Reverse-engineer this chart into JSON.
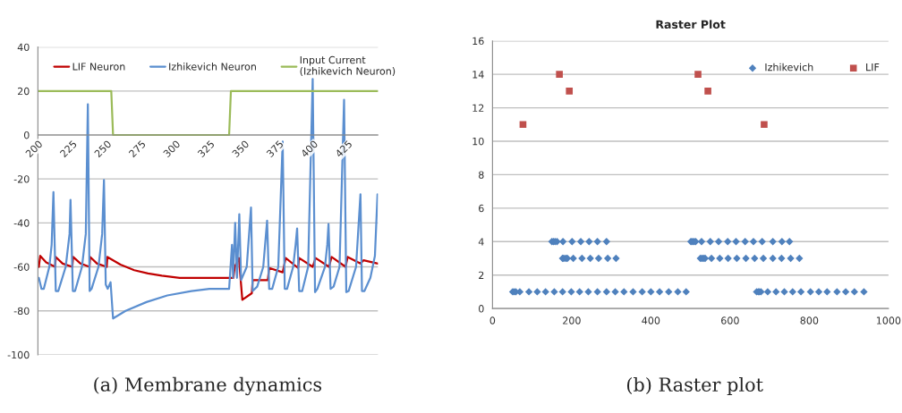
{
  "chart_data": [
    {
      "type": "line",
      "xlim": [
        200,
        447
      ],
      "xticks": [
        200,
        225,
        250,
        275,
        300,
        325,
        350,
        375,
        400,
        425
      ],
      "ylim": [
        -100,
        40
      ],
      "yticks": [
        -100,
        -80,
        -60,
        -40,
        -20,
        0,
        20,
        40
      ],
      "grid": "y",
      "legend": "top",
      "annotations": [
        "(a) Membrane dynamics"
      ],
      "series": [
        {
          "name": "LIF Neuron",
          "color": "#c00000",
          "x": [
            200.7,
            201.7,
            206,
            212.5,
            213,
            218,
            225,
            225.6,
            231,
            237.5,
            238,
            243,
            250,
            250.5,
            260,
            270,
            280,
            290,
            303,
            342,
            343,
            346,
            348.5,
            355.4,
            356,
            367,
            368,
            377.8,
            380,
            389,
            389.8,
            399.6,
            401.7,
            411.5,
            413.3,
            423.5,
            425,
            434.3,
            436.5,
            447
          ],
          "values": [
            -60,
            -55,
            -58,
            -60,
            -55.5,
            -58.5,
            -60,
            -55.5,
            -58.5,
            -60,
            -55.5,
            -58.5,
            -60,
            -55.5,
            -59,
            -61.5,
            -63,
            -64,
            -65,
            -65,
            -60,
            -56,
            -75,
            -72,
            -66,
            -66,
            -60.5,
            -62.5,
            -56,
            -60.5,
            -56,
            -60,
            -56,
            -60,
            -55.5,
            -60,
            -55.5,
            -58.5,
            -57,
            -58.5
          ]
        },
        {
          "name": "Izhikevich Neuron",
          "color": "#5b8fd0",
          "x": [
            200.7,
            202.6,
            204.3,
            208.3,
            210,
            211.3,
            213,
            214.8,
            220.2,
            223,
            223.7,
            225.4,
            227,
            232,
            234.8,
            236.3,
            237.6,
            239,
            244,
            246.7,
            248,
            249.3,
            250.7,
            252.8,
            254.6,
            263.7,
            278.9,
            294,
            311.5,
            324.6,
            338.9,
            341,
            341.8,
            343.3,
            344.6,
            346.3,
            347.6,
            351.7,
            354.8,
            356,
            359.3,
            363.7,
            366.5,
            368,
            370.2,
            374.6,
            377.8,
            379.3,
            381,
            385.4,
            387.2,
            388.3,
            389.8,
            392,
            396.3,
            399.6,
            401.3,
            403,
            408.5,
            410.2,
            411.1,
            412.6,
            414.8,
            419.1,
            422.4,
            424,
            425.7,
            431.1,
            434.3,
            435.4,
            437.2,
            441.5,
            444.8,
            446.7
          ],
          "values": [
            -65,
            -70,
            -70,
            -60,
            -50,
            -26,
            -71,
            -71,
            -60,
            -45,
            -29.5,
            -71,
            -71,
            -60,
            -45,
            14,
            -71,
            -70,
            -60,
            -45,
            -20.5,
            -68,
            -70,
            -67,
            -83.5,
            -80,
            -76,
            -73,
            -71,
            -70,
            -70,
            -50,
            -65,
            -40,
            -65,
            -36,
            -66,
            -60,
            -33,
            -71,
            -69,
            -60,
            -39,
            -70,
            -70,
            -60,
            -3,
            -70,
            -70,
            -60,
            -50,
            -42.5,
            -71,
            -71,
            -60,
            25.5,
            -71.5,
            -70,
            -60,
            -50,
            -40.5,
            -70,
            -69,
            -60,
            16,
            -71.5,
            -71,
            -60,
            -27,
            -71,
            -71,
            -65,
            -55,
            -27
          ]
        },
        {
          "name": "Input Current\n(Izhikevich Neuron)",
          "color": "#9bbb59",
          "x": [
            200,
            253.3,
            254.6,
            338.9,
            340.2,
            447
          ],
          "values": [
            20,
            20,
            0,
            0,
            20,
            20
          ]
        }
      ]
    },
    {
      "type": "scatter",
      "title": "Raster Plot",
      "xlim": [
        0,
        1000
      ],
      "xticks": [
        0,
        200,
        400,
        600,
        800,
        1000
      ],
      "ylim": [
        0,
        16
      ],
      "yticks": [
        0,
        2,
        4,
        6,
        8,
        10,
        12,
        14,
        16
      ],
      "grid": "y",
      "legend": "top right",
      "annotations": [
        "(b) Raster plot"
      ],
      "series": [
        {
          "name": "Izhikevich",
          "color": "#4f81bd",
          "marker": "diamond",
          "x": [
            51,
            55,
            59,
            69,
            92,
            113,
            134,
            156,
            177,
            199,
            220,
            242,
            265,
            288,
            310,
            332,
            355,
            378,
            400,
            422,
            445,
            468,
            489,
            667,
            671,
            674,
            678,
            695,
            716,
            737,
            758,
            779,
            803,
            824,
            845,
            870,
            892,
            914,
            938,
            150,
            154,
            158,
            163,
            178,
            201,
            223,
            244,
            265,
            288,
            501,
            505,
            509,
            513,
            528,
            550,
            571,
            594,
            615,
            638,
            659,
            681,
            708,
            731,
            750,
            177,
            180,
            185,
            189,
            204,
            226,
            247,
            268,
            291,
            312,
            525,
            529,
            533,
            537,
            553,
            574,
            595,
            617,
            640,
            662,
            684,
            708,
            730,
            753,
            775
          ],
          "values": [
            1,
            1,
            1,
            1,
            1,
            1,
            1,
            1,
            1,
            1,
            1,
            1,
            1,
            1,
            1,
            1,
            1,
            1,
            1,
            1,
            1,
            1,
            1,
            1,
            1,
            1,
            1,
            1,
            1,
            1,
            1,
            1,
            1,
            1,
            1,
            1,
            1,
            1,
            1,
            4,
            4,
            4,
            4,
            4,
            4,
            4,
            4,
            4,
            4,
            4,
            4,
            4,
            4,
            4,
            4,
            4,
            4,
            4,
            4,
            4,
            4,
            4,
            4,
            4,
            3,
            3,
            3,
            3,
            3,
            3,
            3,
            3,
            3,
            3,
            3,
            3,
            3,
            3,
            3,
            3,
            3,
            3,
            3,
            3,
            3,
            3,
            3,
            3,
            3
          ]
        },
        {
          "name": "LIF",
          "color": "#c0504d",
          "marker": "square",
          "x": [
            77,
            169,
            194,
            519,
            544,
            686
          ],
          "values": [
            11,
            14,
            13,
            14,
            13,
            11
          ]
        }
      ]
    }
  ]
}
